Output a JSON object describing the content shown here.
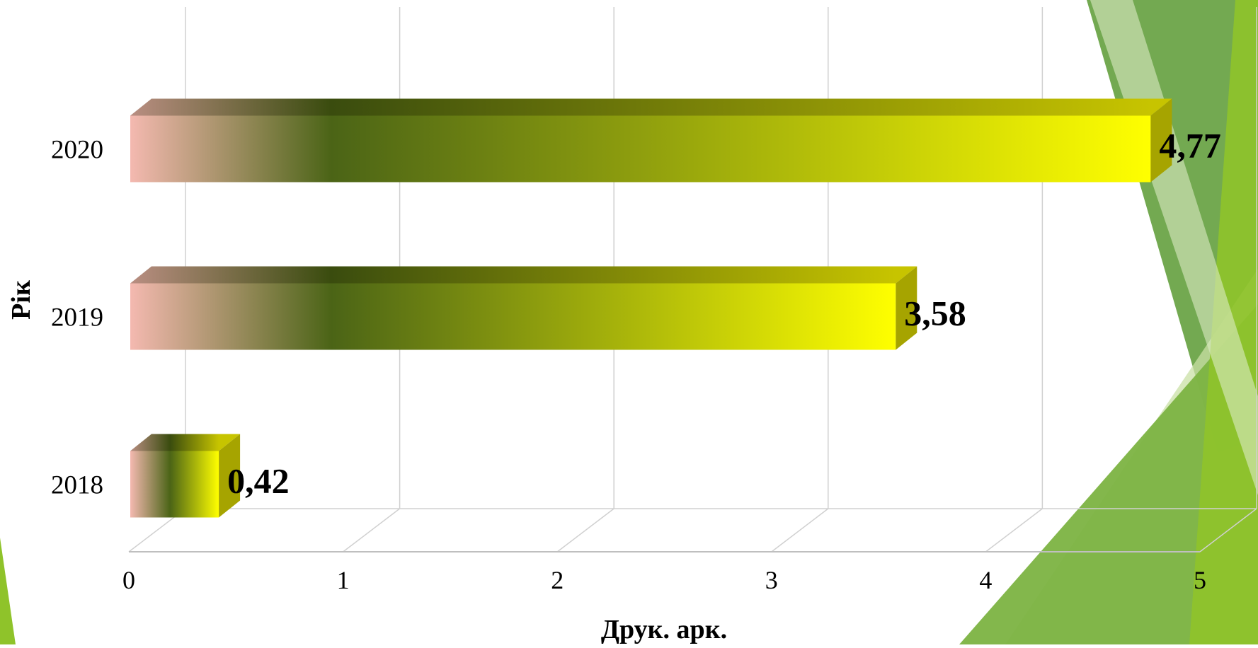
{
  "chart_data": {
    "type": "bar",
    "orientation": "horizontal",
    "style": "3d",
    "categories": [
      "2020",
      "2019",
      "2018"
    ],
    "values": [
      4.77,
      3.58,
      0.42
    ],
    "data_labels": [
      "4,77",
      "3,58",
      "0,42"
    ],
    "x_ticks": [
      "0",
      "1",
      "2",
      "3",
      "4",
      "5"
    ],
    "xlim": [
      0,
      5
    ],
    "xlabel": "Друк. арк.",
    "ylabel": "Рік",
    "grid": true,
    "legend": "none"
  },
  "colors": {
    "bar_start": "#f4b9b0",
    "bar_dark": "#4b6416",
    "bar_end": "#ffff00",
    "bar_side": "#a6a400",
    "bar_top_start": "#b98e82",
    "bar_top_dark": "#3a4c0e",
    "bar_top_end": "#c7c400",
    "grid": "#d0d0d0",
    "axis": "#bfbfbf",
    "decor_dark_green": "#5a9a32",
    "decor_mid_green": "#7cb342",
    "decor_light_green": "#c9e0a6",
    "decor_lime": "#8fc32a"
  }
}
